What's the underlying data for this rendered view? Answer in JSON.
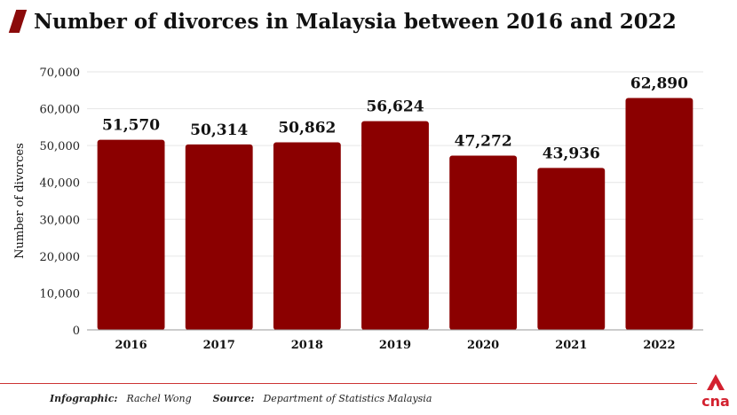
{
  "header": {
    "title": "Number of divorces in Malaysia between 2016 and 2022"
  },
  "chart_data": {
    "type": "bar",
    "title": "Number of divorces in Malaysia between 2016 and 2022",
    "categories": [
      "2016",
      "2017",
      "2018",
      "2019",
      "2020",
      "2021",
      "2022"
    ],
    "values": [
      51570,
      50314,
      50862,
      56624,
      47272,
      43936,
      62890
    ],
    "value_labels": [
      "51,570",
      "50,314",
      "50,862",
      "56,624",
      "47,272",
      "43,936",
      "62,890"
    ],
    "ylabel": "Number of divorces",
    "xlabel": "",
    "ylim": [
      0,
      70000
    ],
    "yticks": [
      0,
      10000,
      20000,
      30000,
      40000,
      50000,
      60000,
      70000
    ],
    "ytick_labels": [
      "0",
      "10,000",
      "20,000",
      "30,000",
      "40,000",
      "50,000",
      "60,000",
      "70,000"
    ],
    "grid": true,
    "bar_color": "#8b0000"
  },
  "footer": {
    "infographic_label": "Infographic:",
    "infographic_value": "Rachel Wong",
    "source_label": "Source:",
    "source_value": "Department of Statistics Malaysia"
  },
  "logo": {
    "text": "cna",
    "icon": "cna-logo-icon",
    "color": "#d3212f"
  }
}
